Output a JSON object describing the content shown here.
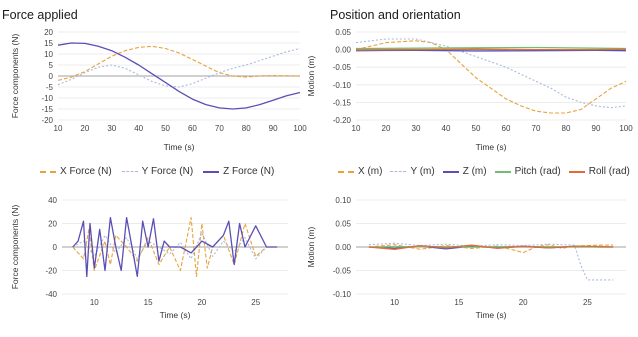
{
  "panels": {
    "left_title": "Force applied",
    "right_title": "Position and orientation"
  },
  "legends": {
    "force": [
      {
        "label": "X Force (N)",
        "color": "#E8A33D",
        "style": "dash"
      },
      {
        "label": "Y Force (N)",
        "color": "#A8B8E0",
        "style": "dot"
      },
      {
        "label": "Z Force (N)",
        "color": "#5B4FB5",
        "style": "solid"
      }
    ],
    "motion": [
      {
        "label": "X (m)",
        "color": "#E8A33D",
        "style": "dash"
      },
      {
        "label": "Y (m)",
        "color": "#A8B8E0",
        "style": "dot"
      },
      {
        "label": "Z (m)",
        "color": "#5B4FB5",
        "style": "solid"
      },
      {
        "label": "Pitch (rad)",
        "color": "#6FBF73",
        "style": "solid"
      },
      {
        "label": "Roll (rad)",
        "color": "#E26B3C",
        "style": "solid"
      }
    ]
  },
  "chart_data": [
    {
      "id": "force-top",
      "type": "line",
      "ylabel": "Force components (N)",
      "xlabel": "Time (s)",
      "xlim": [
        10,
        100
      ],
      "ylim": [
        -20,
        20
      ],
      "xticks": [
        10,
        20,
        30,
        40,
        50,
        60,
        70,
        80,
        90,
        100
      ],
      "yticks": [
        20,
        15,
        10,
        5,
        0,
        -5,
        -10,
        -15,
        -20
      ],
      "grid": true,
      "series": [
        {
          "name": "X Force (N)",
          "color": "#E8A33D",
          "style": "dash",
          "x": [
            10,
            15,
            20,
            25,
            30,
            35,
            40,
            45,
            50,
            55,
            60,
            65,
            70,
            75,
            80,
            85,
            90,
            95,
            100
          ],
          "y": [
            -2,
            -0.5,
            2,
            5.5,
            9,
            11.5,
            13,
            13.5,
            12.5,
            10.5,
            7.5,
            4.5,
            1.5,
            0,
            -0.5,
            0,
            0.2,
            0.1,
            0
          ]
        },
        {
          "name": "Y Force (N)",
          "color": "#A8B8E0",
          "style": "dot",
          "x": [
            10,
            15,
            20,
            25,
            30,
            35,
            40,
            45,
            50,
            55,
            60,
            65,
            70,
            75,
            80,
            85,
            90,
            95,
            100
          ],
          "y": [
            -4,
            -1.5,
            1.5,
            4,
            5,
            3.5,
            0.5,
            -2.5,
            -4.5,
            -5,
            -3.5,
            -1,
            1.5,
            3.5,
            5,
            7,
            9,
            11,
            12.5
          ]
        },
        {
          "name": "Z Force (N)",
          "color": "#5B4FB5",
          "style": "solid",
          "x": [
            10,
            15,
            20,
            25,
            30,
            35,
            40,
            45,
            50,
            55,
            60,
            65,
            70,
            75,
            80,
            85,
            90,
            95,
            100
          ],
          "y": [
            14,
            15,
            14.8,
            13.5,
            11.5,
            8.5,
            5,
            1,
            -3,
            -7,
            -10.5,
            -13,
            -14.5,
            -15,
            -14.5,
            -13,
            -11,
            -9,
            -7.5
          ]
        }
      ]
    },
    {
      "id": "motion-top",
      "type": "line",
      "ylabel": "Motion (m)",
      "xlabel": "Time (s)",
      "xlim": [
        10,
        100
      ],
      "ylim": [
        -0.2,
        0.05
      ],
      "xticks": [
        10,
        20,
        30,
        40,
        50,
        60,
        70,
        80,
        90,
        100
      ],
      "yticks": [
        0.05,
        0.0,
        -0.05,
        -0.1,
        -0.15,
        -0.2
      ],
      "yticklabels": [
        "0.05",
        "0.00",
        "-0.05",
        "-0.10",
        "-0.15",
        "-0.20"
      ],
      "grid": true,
      "series": [
        {
          "name": "X (m)",
          "color": "#E8A33D",
          "style": "dash",
          "x": [
            10,
            20,
            30,
            35,
            40,
            45,
            50,
            55,
            60,
            65,
            70,
            75,
            80,
            85,
            90,
            95,
            100
          ],
          "y": [
            0.0,
            0.02,
            0.025,
            0.02,
            0.0,
            -0.04,
            -0.08,
            -0.11,
            -0.14,
            -0.16,
            -0.175,
            -0.18,
            -0.18,
            -0.17,
            -0.14,
            -0.11,
            -0.09
          ]
        },
        {
          "name": "Y (m)",
          "color": "#A8B8E0",
          "style": "dot",
          "x": [
            10,
            20,
            30,
            40,
            50,
            60,
            70,
            75,
            80,
            85,
            90,
            95,
            100
          ],
          "y": [
            0.02,
            0.03,
            0.03,
            0.01,
            -0.02,
            -0.05,
            -0.09,
            -0.11,
            -0.135,
            -0.15,
            -0.16,
            -0.165,
            -0.16
          ]
        },
        {
          "name": "Z (m)",
          "color": "#5B4FB5",
          "style": "solid",
          "x": [
            10,
            30,
            50,
            70,
            90,
            100
          ],
          "y": [
            -0.003,
            -0.002,
            -0.004,
            -0.003,
            -0.002,
            -0.003
          ]
        },
        {
          "name": "Pitch (rad)",
          "color": "#6FBF73",
          "style": "solid",
          "x": [
            10,
            30,
            50,
            70,
            90,
            100
          ],
          "y": [
            0.003,
            0.004,
            0.005,
            0.006,
            0.004,
            0.003
          ]
        },
        {
          "name": "Roll (rad)",
          "color": "#E26B3C",
          "style": "solid",
          "x": [
            10,
            30,
            50,
            70,
            90,
            100
          ],
          "y": [
            -0.001,
            0.0,
            0.001,
            0.0,
            0.0,
            0.001
          ]
        }
      ]
    },
    {
      "id": "force-bottom",
      "type": "line",
      "ylabel": "Force components (N)",
      "xlabel": "Time (s)",
      "xlim": [
        7,
        28
      ],
      "ylim": [
        -40,
        40
      ],
      "xticks": [
        10,
        15,
        20,
        25
      ],
      "yticks": [
        40,
        20,
        0,
        -20,
        -40
      ],
      "grid": true,
      "series": [
        {
          "name": "X Force (N)",
          "color": "#E8A33D",
          "style": "dash",
          "x": [
            8,
            9,
            9.5,
            10,
            11,
            11.5,
            12,
            13,
            14,
            15,
            16,
            17,
            18,
            19,
            19.5,
            20,
            20.5,
            21,
            22,
            23,
            24,
            25,
            26,
            27
          ],
          "y": [
            0,
            -10,
            15,
            -20,
            5,
            -15,
            10,
            0,
            -12,
            8,
            -15,
            0,
            -20,
            25,
            -25,
            20,
            -18,
            0,
            10,
            -15,
            20,
            -8,
            0,
            0
          ]
        },
        {
          "name": "Y Force (N)",
          "color": "#A8B8E0",
          "style": "dot",
          "x": [
            8,
            9,
            10,
            11,
            12,
            13,
            14,
            15,
            16,
            17,
            18,
            19,
            20,
            21,
            22,
            23,
            24,
            25,
            26,
            27
          ],
          "y": [
            0,
            5,
            -8,
            10,
            -5,
            8,
            -10,
            5,
            0,
            -6,
            4,
            -10,
            12,
            -8,
            5,
            -4,
            8,
            -10,
            0,
            0
          ]
        },
        {
          "name": "Z Force (N)",
          "color": "#5B4FB5",
          "style": "solid",
          "x": [
            8,
            8.5,
            9,
            9.3,
            9.6,
            10,
            10.5,
            11,
            11.5,
            12,
            12.5,
            13,
            13.5,
            14,
            14.5,
            15,
            15.5,
            16,
            16.5,
            17,
            18,
            19,
            20,
            21,
            22,
            22.5,
            23,
            23.5,
            24,
            25,
            26,
            27
          ],
          "y": [
            0,
            5,
            22,
            -25,
            20,
            -18,
            15,
            -20,
            25,
            0,
            -20,
            25,
            0,
            -25,
            22,
            0,
            24,
            -12,
            5,
            0,
            0,
            -5,
            5,
            0,
            10,
            22,
            -15,
            20,
            0,
            18,
            0,
            0
          ]
        }
      ]
    },
    {
      "id": "motion-bottom",
      "type": "line",
      "ylabel": "Motion (m)",
      "xlabel": "Time (s)",
      "xlim": [
        7,
        28
      ],
      "ylim": [
        -0.1,
        0.1
      ],
      "xticks": [
        10,
        15,
        20,
        25
      ],
      "yticks": [
        0.1,
        0.05,
        0.0,
        -0.05,
        -0.1
      ],
      "yticklabels": [
        "0.10",
        "0.05",
        "0.00",
        "-0.05",
        "-0.10"
      ],
      "grid": true,
      "series": [
        {
          "name": "X (m)",
          "color": "#E8A33D",
          "style": "dash",
          "x": [
            8,
            10,
            12,
            14,
            16,
            18,
            19.5,
            20,
            21,
            22,
            23,
            24,
            25,
            26,
            27
          ],
          "y": [
            0,
            0.005,
            -0.005,
            0.003,
            -0.003,
            0.002,
            -0.008,
            -0.012,
            0.0,
            0.005,
            -0.003,
            0.002,
            0.003,
            0.004,
            0.004
          ]
        },
        {
          "name": "Y (m)",
          "color": "#A8B8E0",
          "style": "dot",
          "x": [
            8,
            10,
            12,
            14,
            16,
            18,
            20,
            22,
            24,
            24.5,
            25,
            26,
            27
          ],
          "y": [
            0.005,
            0.008,
            0.003,
            0.006,
            0.002,
            0.005,
            0.003,
            0.006,
            0.004,
            -0.04,
            -0.07,
            -0.07,
            -0.07
          ]
        },
        {
          "name": "Z (m)",
          "color": "#5B4FB5",
          "style": "solid",
          "x": [
            8,
            10,
            12,
            14,
            16,
            18,
            20,
            22,
            24,
            26,
            27
          ],
          "y": [
            0,
            -0.003,
            0.002,
            -0.004,
            0.002,
            -0.002,
            0.001,
            -0.002,
            0.001,
            0.0,
            0.0
          ]
        },
        {
          "name": "Pitch (rad)",
          "color": "#6FBF73",
          "style": "solid",
          "x": [
            8,
            12,
            16,
            20,
            24,
            27
          ],
          "y": [
            0.0,
            0.001,
            0.0,
            0.001,
            0.0,
            0.0
          ]
        },
        {
          "name": "Roll (rad)",
          "color": "#E26B3C",
          "style": "solid",
          "x": [
            8,
            10,
            12,
            14,
            16,
            18,
            20,
            22,
            24,
            26,
            27
          ],
          "y": [
            0,
            -0.005,
            0.003,
            -0.002,
            0.004,
            -0.003,
            0.002,
            -0.002,
            0.002,
            0.001,
            0.0
          ]
        }
      ]
    }
  ]
}
